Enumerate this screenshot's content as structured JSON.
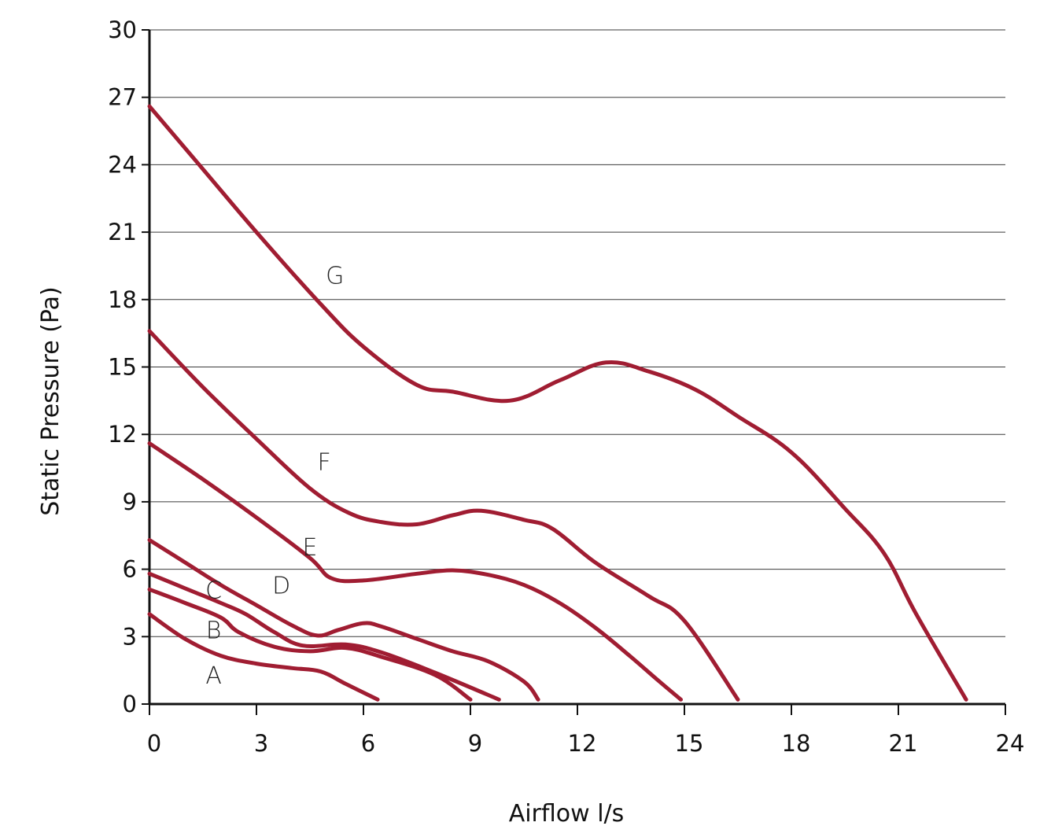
{
  "chart_data": {
    "type": "line",
    "xlabel": "Airflow l/s",
    "ylabel": "Static Pressure (Pa)",
    "xlim": [
      0,
      24
    ],
    "ylim": [
      0,
      30
    ],
    "xticks": [
      "0",
      "3",
      "6",
      "9",
      "12",
      "15",
      "18",
      "21",
      "24"
    ],
    "yticks": [
      "0",
      "3",
      "6",
      "9",
      "12",
      "15",
      "18",
      "21",
      "24",
      "27",
      "30"
    ],
    "grid": "horizontal",
    "line_color": "#A01D32",
    "series": [
      {
        "name": "A",
        "label_at": [
          1.8,
          1.3
        ],
        "x": [
          0,
          1,
          2,
          3,
          4,
          4.8,
          5.5,
          6.4
        ],
        "y": [
          4.0,
          2.9,
          2.15,
          1.8,
          1.6,
          1.45,
          0.9,
          0.2
        ]
      },
      {
        "name": "B",
        "label_at": [
          1.8,
          3.3
        ],
        "x": [
          0,
          1,
          2,
          2.5,
          3.5,
          4.5,
          5.5,
          6.5,
          8,
          9
        ],
        "y": [
          5.1,
          4.5,
          3.85,
          3.2,
          2.55,
          2.35,
          2.5,
          2.1,
          1.3,
          0.2
        ]
      },
      {
        "name": "C",
        "label_at": [
          1.8,
          5.1
        ],
        "x": [
          0,
          1,
          2,
          2.7,
          3.5,
          4.3,
          5.5,
          6.5,
          8,
          9.8
        ],
        "y": [
          5.8,
          5.15,
          4.5,
          4.0,
          3.2,
          2.6,
          2.65,
          2.3,
          1.4,
          0.2
        ]
      },
      {
        "name": "D",
        "label_at": [
          3.7,
          5.3
        ],
        "x": [
          0,
          1,
          2,
          3,
          4,
          4.7,
          5.3,
          6,
          6.5,
          7.5,
          8.5,
          9.5,
          10.5,
          10.9
        ],
        "y": [
          7.3,
          6.3,
          5.3,
          4.4,
          3.5,
          3.05,
          3.3,
          3.6,
          3.45,
          2.9,
          2.35,
          1.9,
          1.0,
          0.2
        ]
      },
      {
        "name": "E",
        "label_at": [
          4.5,
          7.0
        ],
        "x": [
          0,
          1.5,
          3,
          4.5,
          5.1,
          6,
          7.5,
          8.5,
          9.5,
          10.5,
          11.5,
          12.5,
          13.5,
          14.3,
          14.9
        ],
        "y": [
          11.6,
          10.0,
          8.3,
          6.5,
          5.6,
          5.5,
          5.8,
          5.95,
          5.75,
          5.3,
          4.5,
          3.4,
          2.1,
          1.0,
          0.2
        ]
      },
      {
        "name": "F",
        "label_at": [
          4.9,
          10.8
        ],
        "x": [
          0,
          1.5,
          3,
          4.5,
          5.6,
          6.5,
          7.5,
          8.5,
          9.3,
          10.5,
          11.3,
          12.5,
          14,
          15,
          16.5
        ],
        "y": [
          16.6,
          14.1,
          11.8,
          9.6,
          8.5,
          8.1,
          8.0,
          8.4,
          8.6,
          8.2,
          7.8,
          6.3,
          4.8,
          3.7,
          0.2
        ]
      },
      {
        "name": "G",
        "label_at": [
          5.2,
          19.1
        ],
        "x": [
          0,
          1.5,
          3,
          4.8,
          6,
          7.5,
          8.5,
          10.1,
          11.5,
          12.8,
          14,
          15.3,
          16.5,
          18,
          19.5,
          20.6,
          21.5,
          22.9
        ],
        "y": [
          26.6,
          23.8,
          21.0,
          17.8,
          15.9,
          14.2,
          13.9,
          13.5,
          14.4,
          15.2,
          14.8,
          14.0,
          12.8,
          11.2,
          8.7,
          6.7,
          4.0,
          0.2
        ]
      }
    ]
  }
}
